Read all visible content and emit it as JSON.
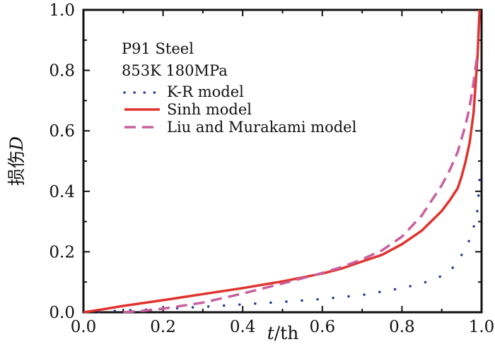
{
  "chart_data": {
    "type": "line",
    "title": "",
    "xlabel_italic": "t",
    "xlabel_rest": "/th",
    "ylabel_cjk": "损伤",
    "ylabel_italic": "D",
    "xlim": [
      0,
      1.0
    ],
    "ylim": [
      0,
      1.0
    ],
    "xticks": [
      "0.0",
      "0.2",
      "0.4",
      "0.6",
      "0.8",
      "1.0"
    ],
    "yticks": [
      "0.0",
      "0.2",
      "0.4",
      "0.6",
      "0.8",
      "1.0"
    ],
    "annotation": [
      "P91 Steel",
      "853K 180MPa"
    ],
    "legend_position": "top-left",
    "series": [
      {
        "name": "K-R model",
        "style": "dotted",
        "color": "#2b3a96",
        "x": [
          0.0,
          0.1,
          0.2,
          0.3,
          0.4,
          0.5,
          0.6,
          0.7,
          0.8,
          0.85,
          0.9,
          0.93,
          0.95,
          0.97,
          0.98,
          0.99,
          0.995
        ],
        "y": [
          0.0,
          0.006,
          0.011,
          0.018,
          0.026,
          0.034,
          0.044,
          0.057,
          0.08,
          0.095,
          0.12,
          0.15,
          0.19,
          0.24,
          0.28,
          0.34,
          0.44
        ]
      },
      {
        "name": "Sinh model",
        "style": "solid",
        "color": "#e0322e",
        "x": [
          0.0,
          0.05,
          0.1,
          0.2,
          0.3,
          0.4,
          0.5,
          0.6,
          0.65,
          0.7,
          0.75,
          0.8,
          0.85,
          0.9,
          0.92,
          0.94,
          0.95,
          0.96,
          0.97,
          0.98,
          0.99,
          0.995
        ],
        "y": [
          0.0,
          0.01,
          0.021,
          0.04,
          0.06,
          0.08,
          0.102,
          0.128,
          0.145,
          0.168,
          0.19,
          0.225,
          0.27,
          0.335,
          0.37,
          0.41,
          0.45,
          0.5,
          0.56,
          0.66,
          0.85,
          1.0
        ]
      },
      {
        "name": "Liu and Murakami model",
        "style": "dashed",
        "color": "#c8609e",
        "x": [
          0.1,
          0.15,
          0.2,
          0.3,
          0.4,
          0.5,
          0.6,
          0.65,
          0.7,
          0.75,
          0.8,
          0.85,
          0.9,
          0.92,
          0.94,
          0.96,
          0.97,
          0.98,
          0.99
        ],
        "y": [
          0.0,
          0.005,
          0.012,
          0.032,
          0.062,
          0.095,
          0.13,
          0.15,
          0.175,
          0.205,
          0.25,
          0.32,
          0.42,
          0.47,
          0.53,
          0.62,
          0.68,
          0.76,
          0.86
        ]
      }
    ]
  }
}
